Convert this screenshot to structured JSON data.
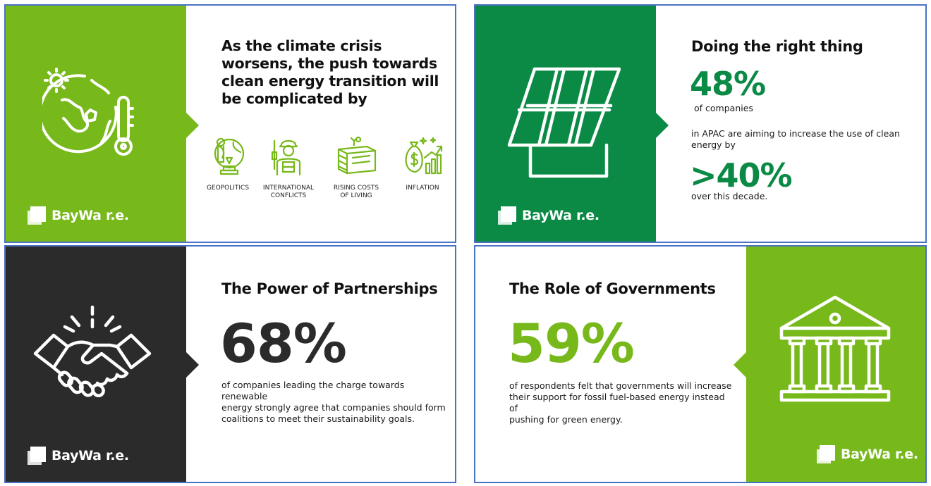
{
  "brand": {
    "name": "BayWa r.e."
  },
  "colors": {
    "lime": "#77b81b",
    "green": "#0a8a44",
    "dark": "#2b2b2b",
    "border": "#4a72c4"
  },
  "card1": {
    "heading": [
      "As the climate crisis",
      "worsens, the push towards",
      "clean energy transition will",
      "be complicated by"
    ],
    "main_icon": "globe-thermometer-icon",
    "factors": [
      {
        "icon": "geopolitics-icon",
        "label": [
          "GEOPOLITICS"
        ]
      },
      {
        "icon": "soldier-icon",
        "label": [
          "INTERNATIONAL",
          "CONFLICTS"
        ]
      },
      {
        "icon": "money-stack-icon",
        "label": [
          "RISING COSTS",
          "OF LIVING"
        ]
      },
      {
        "icon": "money-bag-chart-icon",
        "label": [
          "INFLATION"
        ]
      }
    ]
  },
  "card2": {
    "heading": "Doing the right thing",
    "main_icon": "solar-panel-icon",
    "stat1": "48%",
    "text1": "of companies",
    "text2": [
      "in APAC are aiming to increase the use of clean",
      "energy by"
    ],
    "stat2": ">40%",
    "text3": "over this decade."
  },
  "card3": {
    "heading": "The Power of Partnerships",
    "main_icon": "handshake-icon",
    "stat": "68%",
    "text": [
      "of companies leading the charge towards renewable",
      "energy strongly agree that companies should form",
      "coalitions to meet their sustainability goals."
    ]
  },
  "card4": {
    "heading": "The Role of Governments",
    "main_icon": "government-building-icon",
    "stat": "59%",
    "text": [
      "of respondents felt that governments will increase",
      "their support for fossil fuel-based energy instead of",
      "pushing for green energy."
    ]
  }
}
